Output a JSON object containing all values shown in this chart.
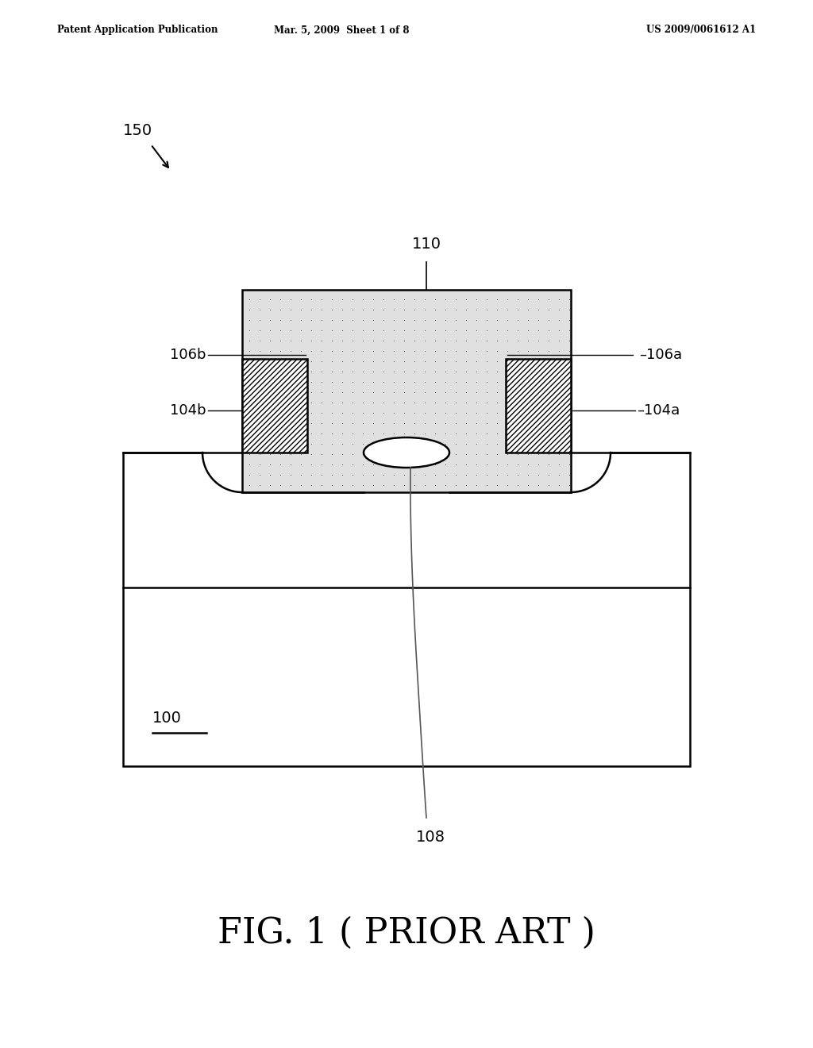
{
  "background_color": "#ffffff",
  "header_left": "Patent Application Publication",
  "header_center": "Mar. 5, 2009  Sheet 1 of 8",
  "header_right": "US 2009/0061612 A1",
  "figure_label": "FIG. 1 ( PRIOR ART )",
  "label_150": "150",
  "label_110": "110",
  "label_106b": "106b",
  "label_106a": "106a",
  "label_104b": "104b",
  "label_104a": "104a",
  "label_100": "100",
  "label_108": "108",
  "line_color": "#000000",
  "dot_fill_color": "#e0e0e0",
  "substrate_fill": "#ffffff",
  "lw": 1.8
}
